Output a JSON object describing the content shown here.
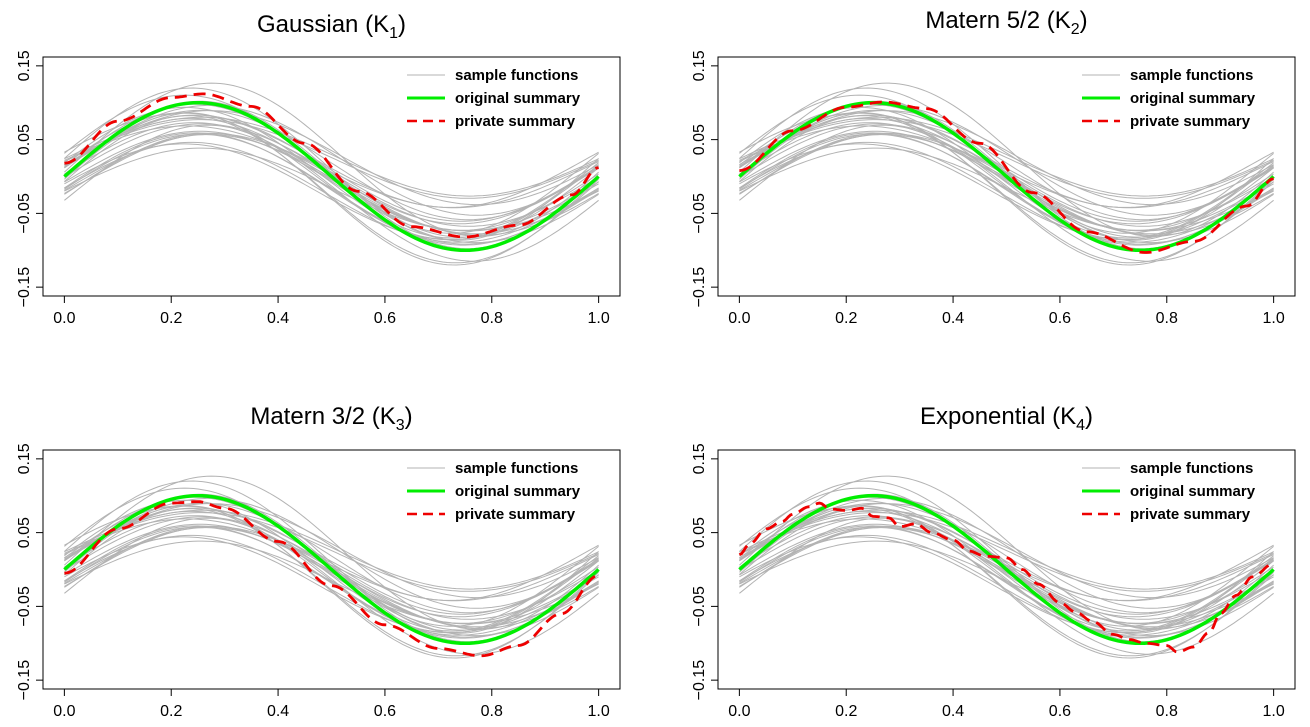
{
  "chart_data": [
    {
      "type": "line",
      "title": "Gaussian (K",
      "title_sub": "1",
      "title_close": ")",
      "xlim": [
        0,
        1
      ],
      "ylim": [
        -0.15,
        0.15
      ],
      "x_ticks": [
        "0.0",
        "0.2",
        "0.4",
        "0.6",
        "0.8",
        "1.0"
      ],
      "y_ticks": [
        "-0.15",
        "-0.05",
        "0.05",
        "0.15"
      ],
      "legend": [
        "sample functions",
        "original summary",
        "private summary"
      ],
      "legend_position": "top-right",
      "grid": false,
      "colors": {
        "sample": "#b3b3b3",
        "original": "#00ee00",
        "private": "#ee0000"
      },
      "series": [
        {
          "name": "sample functions",
          "style": "thin gray",
          "count": 30,
          "amplitude_range": [
            0.06,
            0.13
          ],
          "offset_range": [
            -0.03,
            0.03
          ]
        },
        {
          "name": "original summary",
          "style": "solid green",
          "formula": "0.1*sin(2*pi*x)",
          "x": [
            0,
            0.25,
            0.5,
            0.75,
            1.0
          ],
          "y": [
            0,
            0.1,
            0,
            -0.1,
            0
          ]
        },
        {
          "name": "private summary",
          "style": "dashed red",
          "x": [
            0,
            0.1,
            0.2,
            0.26,
            0.35,
            0.45,
            0.55,
            0.65,
            0.75,
            0.85,
            0.95,
            1.0
          ],
          "y": [
            0.018,
            0.075,
            0.107,
            0.112,
            0.095,
            0.045,
            -0.02,
            -0.068,
            -0.082,
            -0.066,
            -0.025,
            0.012
          ]
        }
      ]
    },
    {
      "type": "line",
      "title": "Matern 5/2 (K",
      "title_sub": "2",
      "title_close": ")",
      "xlim": [
        0,
        1
      ],
      "ylim": [
        -0.15,
        0.15
      ],
      "x_ticks": [
        "0.0",
        "0.2",
        "0.4",
        "0.6",
        "0.8",
        "1.0"
      ],
      "y_ticks": [
        "-0.15",
        "-0.05",
        "0.05",
        "0.15"
      ],
      "legend": [
        "sample functions",
        "original summary",
        "private summary"
      ],
      "legend_position": "top-right",
      "grid": false,
      "colors": {
        "sample": "#b3b3b3",
        "original": "#00ee00",
        "private": "#ee0000"
      },
      "series": [
        {
          "name": "sample functions",
          "style": "thin gray",
          "count": 30,
          "amplitude_range": [
            0.06,
            0.13
          ],
          "offset_range": [
            -0.03,
            0.03
          ]
        },
        {
          "name": "original summary",
          "style": "solid green",
          "formula": "0.1*sin(2*pi*x)",
          "x": [
            0,
            0.25,
            0.5,
            0.75,
            1.0
          ],
          "y": [
            0,
            0.1,
            0,
            -0.1,
            0
          ]
        },
        {
          "name": "private summary",
          "style": "dashed red",
          "x": [
            0,
            0.1,
            0.2,
            0.27,
            0.35,
            0.45,
            0.55,
            0.65,
            0.76,
            0.85,
            0.95,
            1.0
          ],
          "y": [
            0.008,
            0.062,
            0.094,
            0.101,
            0.092,
            0.045,
            -0.022,
            -0.075,
            -0.103,
            -0.088,
            -0.04,
            -0.003
          ]
        }
      ]
    },
    {
      "type": "line",
      "title": "Matern 3/2 (K",
      "title_sub": "3",
      "title_close": ")",
      "xlim": [
        0,
        1
      ],
      "ylim": [
        -0.15,
        0.15
      ],
      "x_ticks": [
        "0.0",
        "0.2",
        "0.4",
        "0.6",
        "0.8",
        "1.0"
      ],
      "y_ticks": [
        "-0.15",
        "-0.05",
        "0.05",
        "0.15"
      ],
      "legend": [
        "sample functions",
        "original summary",
        "private summary"
      ],
      "legend_position": "top-right",
      "grid": false,
      "colors": {
        "sample": "#b3b3b3",
        "original": "#00ee00",
        "private": "#ee0000"
      },
      "series": [
        {
          "name": "sample functions",
          "style": "thin gray",
          "count": 30,
          "amplitude_range": [
            0.06,
            0.13
          ],
          "offset_range": [
            -0.03,
            0.03
          ]
        },
        {
          "name": "original summary",
          "style": "solid green",
          "formula": "0.1*sin(2*pi*x)",
          "x": [
            0,
            0.25,
            0.5,
            0.75,
            1.0
          ],
          "y": [
            0,
            0.1,
            0,
            -0.1,
            0
          ]
        },
        {
          "name": "private summary",
          "style": "dashed red",
          "x": [
            0,
            0.1,
            0.2,
            0.25,
            0.3,
            0.4,
            0.5,
            0.6,
            0.7,
            0.78,
            0.85,
            0.93,
            1.0
          ],
          "y": [
            -0.005,
            0.055,
            0.09,
            0.092,
            0.083,
            0.038,
            -0.022,
            -0.075,
            -0.107,
            -0.117,
            -0.103,
            -0.06,
            -0.008
          ]
        }
      ]
    },
    {
      "type": "line",
      "title": "Exponential (K",
      "title_sub": "4",
      "title_close": ")",
      "xlim": [
        0,
        1
      ],
      "ylim": [
        -0.15,
        0.15
      ],
      "x_ticks": [
        "0.0",
        "0.2",
        "0.4",
        "0.6",
        "0.8",
        "1.0"
      ],
      "y_ticks": [
        "-0.15",
        "-0.05",
        "0.05",
        "0.15"
      ],
      "legend": [
        "sample functions",
        "original summary",
        "private summary"
      ],
      "legend_position": "top-right",
      "grid": false,
      "colors": {
        "sample": "#b3b3b3",
        "original": "#00ee00",
        "private": "#ee0000"
      },
      "series": [
        {
          "name": "sample functions",
          "style": "thin gray",
          "count": 30,
          "amplitude_range": [
            0.06,
            0.13
          ],
          "offset_range": [
            -0.03,
            0.03
          ]
        },
        {
          "name": "original summary",
          "style": "solid green",
          "formula": "0.1*sin(2*pi*x)",
          "x": [
            0,
            0.25,
            0.5,
            0.75,
            1.0
          ],
          "y": [
            0,
            0.1,
            0,
            -0.1,
            0
          ]
        },
        {
          "name": "private summary",
          "style": "dashed red",
          "x": [
            0,
            0.02,
            0.05,
            0.08,
            0.1,
            0.13,
            0.15,
            0.17,
            0.2,
            0.23,
            0.25,
            0.28,
            0.3,
            0.33,
            0.36,
            0.4,
            0.43,
            0.46,
            0.5,
            0.53,
            0.56,
            0.6,
            0.63,
            0.66,
            0.7,
            0.73,
            0.76,
            0.8,
            0.82,
            0.85,
            0.88,
            0.9,
            0.93,
            0.96,
            1.0
          ],
          "y": [
            0.02,
            0.035,
            0.055,
            0.065,
            0.075,
            0.085,
            0.09,
            0.082,
            0.08,
            0.083,
            0.072,
            0.07,
            0.058,
            0.062,
            0.05,
            0.04,
            0.025,
            0.018,
            0.016,
            0.0,
            -0.02,
            -0.045,
            -0.058,
            -0.07,
            -0.088,
            -0.095,
            -0.1,
            -0.103,
            -0.112,
            -0.105,
            -0.085,
            -0.06,
            -0.035,
            -0.01,
            0.008
          ]
        }
      ]
    }
  ]
}
